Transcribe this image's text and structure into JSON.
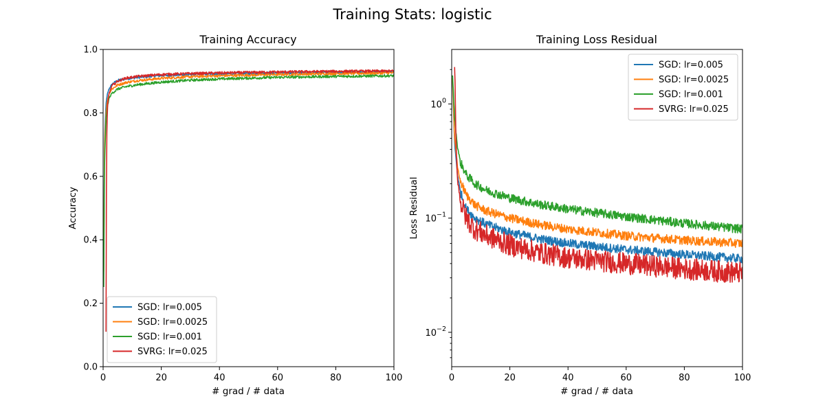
{
  "figure": {
    "suptitle": "Training Stats: logistic"
  },
  "colors": {
    "SGD: lr=0.005": "#1f77b4",
    "SGD: lr=0.0025": "#ff7f0e",
    "SGD: lr=0.001": "#2ca02c",
    "SVRG: lr=0.025": "#d62728"
  },
  "chart_data": [
    {
      "type": "line",
      "title": "Training Accuracy",
      "xlabel": "# grad / # data",
      "ylabel": "Accuracy",
      "xlim": [
        0,
        100
      ],
      "ylim": [
        0,
        1.0
      ],
      "yscale": "linear",
      "xticks": [
        "0",
        "20",
        "40",
        "60",
        "80",
        "100"
      ],
      "yticks": [
        "0.0",
        "0.2",
        "0.4",
        "0.6",
        "0.8",
        "1.0"
      ],
      "legend": "lower-left",
      "grid": false,
      "series": [
        {
          "name": "SGD: lr=0.005",
          "color": "#1f77b4",
          "x": [
            0.2,
            0.5,
            1,
            1.5,
            2,
            3,
            5,
            8,
            12,
            20,
            30,
            40,
            60,
            80,
            100
          ],
          "y": [
            0.35,
            0.72,
            0.83,
            0.86,
            0.875,
            0.89,
            0.902,
            0.908,
            0.912,
            0.918,
            0.921,
            0.923,
            0.926,
            0.928,
            0.929
          ]
        },
        {
          "name": "SGD: lr=0.0025",
          "color": "#ff7f0e",
          "x": [
            0.2,
            0.5,
            1,
            1.5,
            2,
            3,
            5,
            8,
            12,
            20,
            30,
            40,
            60,
            80,
            100
          ],
          "y": [
            0.3,
            0.7,
            0.8,
            0.84,
            0.86,
            0.875,
            0.888,
            0.896,
            0.902,
            0.909,
            0.914,
            0.917,
            0.921,
            0.924,
            0.926
          ]
        },
        {
          "name": "SGD: lr=0.001",
          "color": "#2ca02c",
          "x": [
            0.2,
            0.5,
            1,
            1.5,
            2,
            3,
            5,
            8,
            12,
            20,
            30,
            40,
            60,
            80,
            100
          ],
          "y": [
            0.25,
            0.65,
            0.78,
            0.82,
            0.845,
            0.862,
            0.875,
            0.883,
            0.889,
            0.897,
            0.903,
            0.907,
            0.912,
            0.915,
            0.917
          ]
        },
        {
          "name": "SVRG: lr=0.025",
          "color": "#d62728",
          "x": [
            1.0,
            1.05,
            1.2,
            1.5,
            2,
            3,
            5,
            8,
            12,
            20,
            30,
            40,
            60,
            80,
            100
          ],
          "y": [
            0.11,
            0.35,
            0.7,
            0.82,
            0.86,
            0.885,
            0.9,
            0.91,
            0.915,
            0.921,
            0.924,
            0.926,
            0.929,
            0.931,
            0.932
          ]
        }
      ]
    },
    {
      "type": "line",
      "title": "Training Loss Residual",
      "xlabel": "# grad / # data",
      "ylabel": "Loss Residual",
      "xlim": [
        0,
        100
      ],
      "ylim": [
        0.005,
        3.0
      ],
      "yscale": "log",
      "xticks": [
        "0",
        "20",
        "40",
        "60",
        "80",
        "100"
      ],
      "yticks": [
        {
          "base": "10",
          "exp": "0",
          "value": 1
        },
        {
          "base": "10",
          "exp": "−1",
          "value": 0.1
        },
        {
          "base": "10",
          "exp": "−2",
          "value": 0.01
        }
      ],
      "legend": "upper-right",
      "grid": false,
      "series": [
        {
          "name": "SGD: lr=0.005",
          "color": "#1f77b4",
          "x": [
            0.3,
            1,
            2,
            3,
            5,
            8,
            12,
            20,
            30,
            40,
            60,
            80,
            100
          ],
          "y": [
            1.6,
            0.45,
            0.24,
            0.17,
            0.12,
            0.1,
            0.088,
            0.075,
            0.066,
            0.06,
            0.053,
            0.048,
            0.044
          ]
        },
        {
          "name": "SGD: lr=0.0025",
          "color": "#ff7f0e",
          "x": [
            0.3,
            1,
            2,
            3,
            5,
            8,
            12,
            20,
            30,
            40,
            60,
            80,
            100
          ],
          "y": [
            1.7,
            0.5,
            0.28,
            0.21,
            0.16,
            0.13,
            0.115,
            0.1,
            0.088,
            0.08,
            0.07,
            0.064,
            0.06
          ]
        },
        {
          "name": "SGD: lr=0.001",
          "color": "#2ca02c",
          "x": [
            0.3,
            1,
            2,
            3,
            5,
            8,
            12,
            20,
            30,
            40,
            60,
            80,
            100
          ],
          "y": [
            1.8,
            0.75,
            0.42,
            0.31,
            0.24,
            0.2,
            0.175,
            0.15,
            0.132,
            0.12,
            0.103,
            0.09,
            0.08
          ]
        },
        {
          "name": "SVRG: lr=0.025",
          "color": "#d62728",
          "x": [
            1.0,
            1.05,
            1.5,
            2,
            3,
            5,
            8,
            12,
            20,
            30,
            40,
            60,
            80,
            100
          ],
          "y": [
            2.1,
            2.1,
            0.45,
            0.22,
            0.14,
            0.1,
            0.08,
            0.07,
            0.058,
            0.05,
            0.045,
            0.04,
            0.036,
            0.033
          ]
        }
      ]
    }
  ]
}
